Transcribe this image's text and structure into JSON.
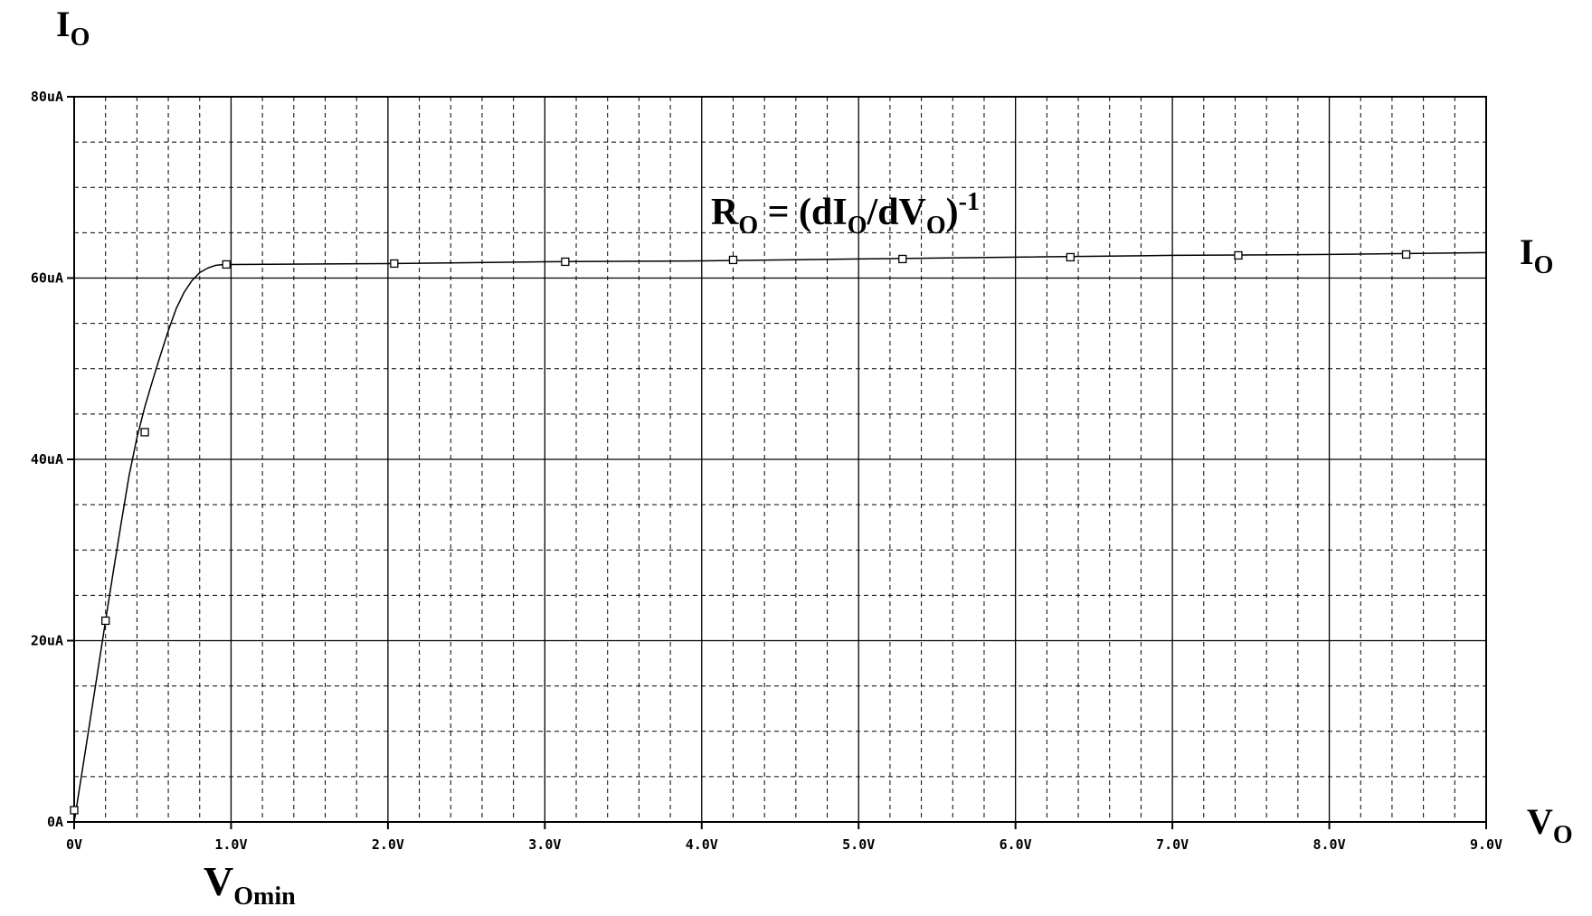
{
  "chart_data": {
    "type": "line",
    "title": "",
    "annotation": "R_O = (dI_O/dV_O)^-1",
    "ylabel": {
      "main": "I",
      "sub": "O"
    },
    "xlabel": {
      "main": "V",
      "sub": "O"
    },
    "curve_label": {
      "main": "I",
      "sub": "O"
    },
    "marker_label": {
      "main": "V",
      "sub": "Omin"
    },
    "xlim": [
      0,
      9
    ],
    "ylim": [
      0,
      80
    ],
    "x_unit": "V",
    "y_unit": "uA",
    "grid": true,
    "x_ticks": [
      0,
      1,
      2,
      3,
      4,
      5,
      6,
      7,
      8,
      9
    ],
    "x_tick_labels": [
      "0V",
      "1.0V",
      "2.0V",
      "3.0V",
      "4.0V",
      "5.0V",
      "6.0V",
      "7.0V",
      "8.0V",
      "9.0V"
    ],
    "y_ticks": [
      0,
      20,
      40,
      60,
      80
    ],
    "y_tick_labels": [
      "0A",
      "20uA",
      "40uA",
      "60uA",
      "80uA"
    ],
    "series": [
      {
        "x": [
          0,
          0.05,
          0.1,
          0.15,
          0.2,
          0.25,
          0.3,
          0.35,
          0.4,
          0.45,
          0.5,
          0.55,
          0.6,
          0.65,
          0.7,
          0.75,
          0.8,
          0.85,
          0.9,
          0.95,
          1.0,
          2.0,
          3.0,
          4.0,
          5.0,
          6.0,
          7.0,
          8.0,
          9.0
        ],
        "y": [
          0,
          5.5,
          11.0,
          16.6,
          22.2,
          27.7,
          33.0,
          38.2,
          42.4,
          45.8,
          48.7,
          51.5,
          54.2,
          56.6,
          58.4,
          59.7,
          60.6,
          61.1,
          61.4,
          61.5,
          61.5,
          61.6,
          61.8,
          61.9,
          62.1,
          62.3,
          62.5,
          62.6,
          62.8
        ]
      }
    ],
    "markers": {
      "x": [
        0.0,
        0.2,
        0.45,
        0.97,
        2.04,
        3.13,
        4.2,
        5.28,
        6.35,
        7.42,
        8.49
      ],
      "y": [
        1.3,
        22.2,
        43.0,
        61.5,
        61.6,
        61.8,
        62.0,
        62.1,
        62.3,
        62.5,
        62.6
      ]
    }
  }
}
